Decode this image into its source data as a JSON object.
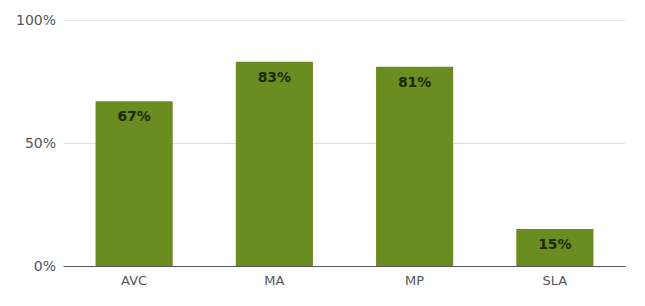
{
  "chart_data": {
    "type": "bar",
    "categories": [
      "AVC",
      "MA",
      "MP",
      "SLA"
    ],
    "values": [
      67,
      83,
      81,
      15
    ],
    "value_labels": [
      "67%",
      "83%",
      "81%",
      "15%"
    ],
    "color": "#6b8c21",
    "ylim": [
      0,
      100
    ],
    "yticks": [
      {
        "value": 0,
        "label": "0%"
      },
      {
        "value": 50,
        "label": "50%"
      },
      {
        "value": 100,
        "label": "100%"
      }
    ],
    "grid": true,
    "data_labels": true
  }
}
